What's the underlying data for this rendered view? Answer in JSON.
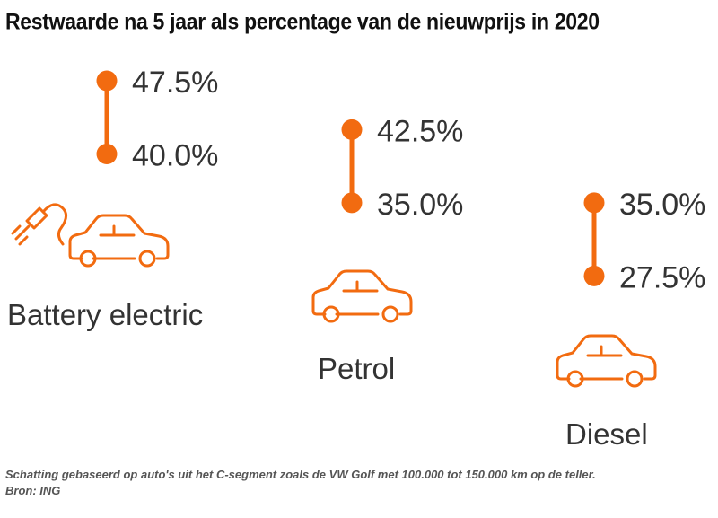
{
  "title": "Restwaarde na 5 jaar als percentage van de nieuwprijs in 2020",
  "footnote": {
    "line1": "Schatting gebaseerd op auto's uit het C-segment zoals de VW Golf met 100.000 tot 150.000 km op de teller.",
    "line2": "Bron: ING"
  },
  "colors": {
    "accent": "#f26b10",
    "text": "#333333"
  },
  "chart_data": {
    "type": "range",
    "title": "Restwaarde na 5 jaar als percentage van de nieuwprijs in 2020",
    "categories": [
      "Battery electric",
      "Petrol",
      "Diesel"
    ],
    "series": [
      {
        "name": "high",
        "values": [
          47.5,
          42.5,
          35.0
        ],
        "labels": [
          "47.5%",
          "42.5%",
          "35.0%"
        ]
      },
      {
        "name": "low",
        "values": [
          40.0,
          35.0,
          27.5
        ],
        "labels": [
          "40.0%",
          "35.0%",
          "27.5%"
        ]
      }
    ],
    "icons": [
      "plug-car-icon",
      "car-icon",
      "car-icon"
    ],
    "grid": false,
    "legend": "none"
  }
}
